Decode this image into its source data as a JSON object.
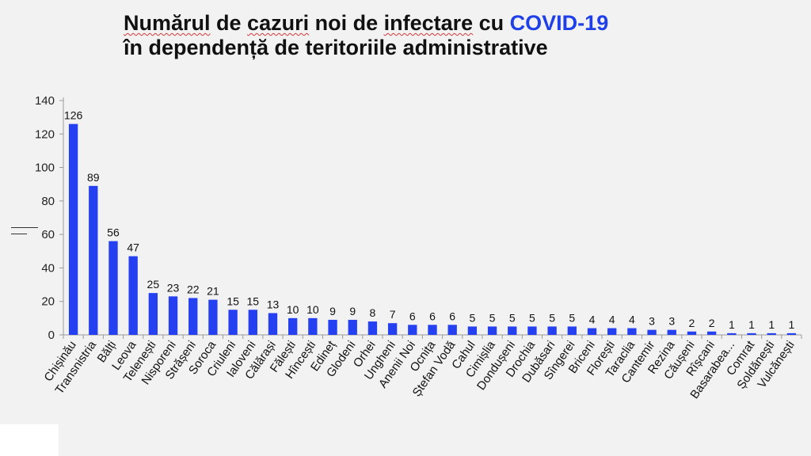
{
  "title": {
    "line1_part1": "Numărul",
    "line1_part2": " de ",
    "line1_part3": "cazuri",
    "line1_part4": " noi de ",
    "line1_part5": "infectare",
    "line1_part6": " cu ",
    "line1_accent": "COVID-19",
    "line2": "în dependență de teritoriile administrative"
  },
  "colors": {
    "bar": "#2540f0",
    "accent": "#1f3fe8",
    "axis": "#999999"
  },
  "chart_data": {
    "type": "bar",
    "title": "Numărul de cazuri noi de infectare cu COVID-19 în dependență de teritoriile administrative",
    "xlabel": "",
    "ylabel": "",
    "ylim": [
      0,
      140
    ],
    "yticks": [
      0,
      20,
      40,
      60,
      80,
      100,
      120,
      140
    ],
    "grid": false,
    "legend": "none",
    "categories": [
      "Chișinău",
      "Transnistria",
      "Bălți",
      "Leova",
      "Telenești",
      "Nisporeni",
      "Strășeni",
      "Soroca",
      "Criuleni",
      "Ialoveni",
      "Călărași",
      "Fălești",
      "Hîncești",
      "Edineț",
      "Glodeni",
      "Orhei",
      "Ungheni",
      "Anenii Noi",
      "Ocnița",
      "Ștefan Vodă",
      "Cahul",
      "Cimișlia",
      "Dondușeni",
      "Drochia",
      "Dubăsari",
      "Sîngerei",
      "Briceni",
      "Florești",
      "Taraclia",
      "Cantemir",
      "Rezina",
      "Căușeni",
      "Rîșcani",
      "Basarabea...",
      "Comrat",
      "Șoldănești",
      "Vulcănești"
    ],
    "values": [
      126,
      89,
      56,
      47,
      25,
      23,
      22,
      21,
      15,
      15,
      13,
      10,
      10,
      9,
      9,
      8,
      7,
      6,
      6,
      6,
      5,
      5,
      5,
      5,
      5,
      5,
      4,
      4,
      4,
      3,
      3,
      2,
      2,
      1,
      1,
      1,
      1
    ]
  }
}
